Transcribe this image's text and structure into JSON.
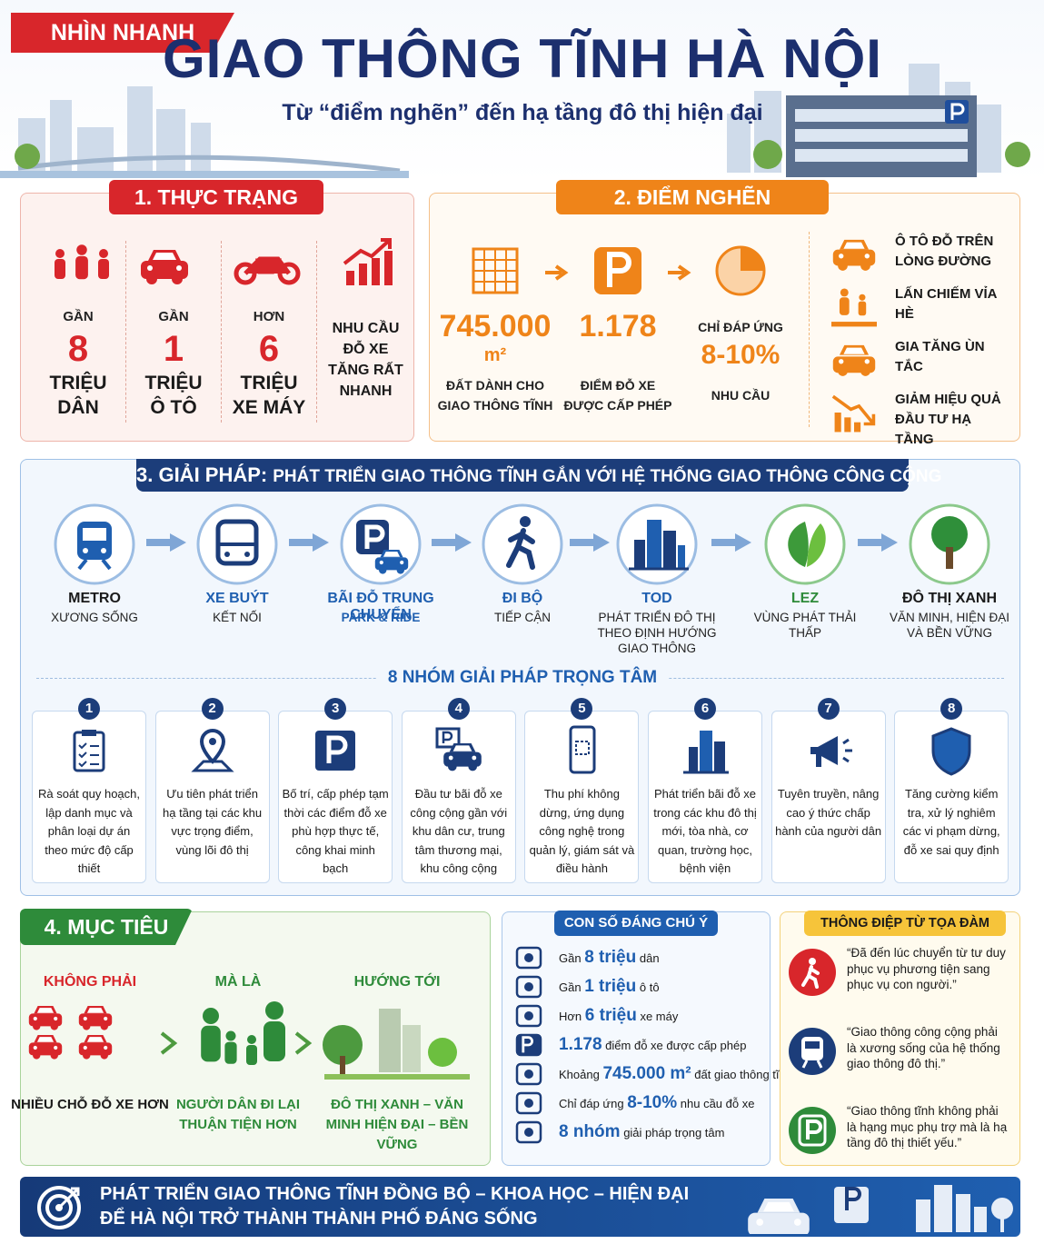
{
  "header": {
    "badge": "NHÌN NHANH",
    "title": "GIAO THÔNG TĨNH HÀ NỘI",
    "subtitle": "Từ “điểm nghẽn” đến hạ tầng đô thị hiện đại"
  },
  "status": {
    "title": "1. THỰC TRẠNG",
    "items": [
      {
        "prefix": "GẦN",
        "number": "8",
        "unit_lines": [
          "TRIỆU",
          "DÂN"
        ]
      },
      {
        "prefix": "GẦN",
        "number": "1",
        "unit_lines": [
          "TRIỆU",
          "Ô TÔ"
        ]
      },
      {
        "prefix": "HƠN",
        "number": "6",
        "unit_lines": [
          "TRIỆU",
          "XE MÁY"
        ]
      }
    ],
    "note": "NHU CẦU ĐỖ XE TĂNG RẤT NHANH"
  },
  "bottlenecks": {
    "title": "2. ĐIỂM NGHẼN",
    "stats": [
      {
        "value": "745.000",
        "unit": "m²",
        "label": "ĐẤT DÀNH CHO GIAO THÔNG TĨNH"
      },
      {
        "value": "1.178",
        "label": "ĐIỂM ĐỖ XE ĐƯỢC CẤP PHÉP"
      },
      {
        "prefix": "CHỈ ĐÁP ỨNG",
        "value": "8-10%",
        "label": "NHU CẦU"
      }
    ],
    "issues": [
      "Ô TÔ ĐỖ TRÊN LÒNG ĐƯỜNG",
      "LẤN CHIẾM VỈA HÈ",
      "GIA TĂNG ÙN TẮC",
      "GIẢM HIỆU QUẢ ĐẦU TƯ HẠ TẦNG"
    ]
  },
  "solutions": {
    "title_lead": "3. GIẢI PHÁP:",
    "title": "PHÁT TRIỂN GIAO THÔNG TĨNH GẮN VỚI HỆ THỐNG GIAO THÔNG CÔNG CỘNG",
    "flow": [
      {
        "name": "METRO",
        "desc": "XƯƠNG SỐNG"
      },
      {
        "name": "XE BUÝT",
        "desc": "KẾT NỐI"
      },
      {
        "name": "BÃI ĐỖ TRUNG CHUYỂN",
        "desc": "PARK & RIDE"
      },
      {
        "name": "ĐI BỘ",
        "desc": "TIẾP CẬN"
      },
      {
        "name": "TOD",
        "desc": "PHÁT TRIỂN ĐÔ THỊ THEO ĐỊNH HƯỚNG GIAO THÔNG"
      },
      {
        "name": "LEZ",
        "desc": "VÙNG PHÁT THẢI THẤP"
      },
      {
        "name": "ĐÔ THỊ XANH",
        "desc": "VĂN MINH, HIỆN ĐẠI VÀ BỀN VỮNG"
      }
    ],
    "groups_title": "8 NHÓM GIẢI PHÁP TRỌNG TÂM",
    "groups": [
      {
        "number": "1",
        "text": "Rà soát quy hoạch, lập danh mục và phân loại dự án theo mức độ cấp thiết"
      },
      {
        "number": "2",
        "text": "Ưu tiên phát triển hạ tầng tại các khu vực trọng điểm, vùng lõi đô thị"
      },
      {
        "number": "3",
        "text": "Bố trí, cấp phép tạm thời các điểm đỗ xe phù hợp thực tế, công khai minh bạch"
      },
      {
        "number": "4",
        "text": "Đầu tư bãi đỗ xe công cộng gần với khu dân cư, trung tâm thương mại, khu công cộng"
      },
      {
        "number": "5",
        "text": "Thu phí không dừng, ứng dụng công nghệ trong quản lý, giám sát và điều hành"
      },
      {
        "number": "6",
        "text": "Phát triển bãi đỗ xe trong các khu đô thị mới, tòa nhà, cơ quan, trường học, bệnh viện"
      },
      {
        "number": "7",
        "text": "Tuyên truyền, nâng cao ý thức chấp hành của người dân"
      },
      {
        "number": "8",
        "text": "Tăng cường kiểm tra, xử lý nghiêm các vi phạm dừng, đỗ xe sai quy định"
      }
    ]
  },
  "goals": {
    "title": "4. MỤC TIÊU",
    "columns": [
      {
        "heading": "KHÔNG PHẢI",
        "caption": "NHIỀU CHỖ ĐỖ XE HƠN"
      },
      {
        "heading": "MÀ LÀ",
        "caption": "NGƯỜI DÂN ĐI LẠI THUẬN TIỆN HƠN"
      },
      {
        "heading": "HƯỚNG TỚI",
        "caption": "ĐÔ THỊ XANH – VĂN MINH HIỆN ĐẠI – BỀN VỮNG"
      }
    ]
  },
  "facts": {
    "title": "CON SỐ ĐÁNG CHÚ Ý",
    "items": [
      {
        "before": "Gần",
        "number": "8 triệu",
        "after": "dân"
      },
      {
        "before": "Gần",
        "number": "1 triệu",
        "after": "ô tô"
      },
      {
        "before": "Hơn",
        "number": "6 triệu",
        "after": "xe máy"
      },
      {
        "number": "1.178",
        "after": "điểm đỗ xe được cấp phép"
      },
      {
        "before": "Khoảng",
        "number": "745.000 m²",
        "after": "đất giao thông tĩnh"
      },
      {
        "before": "Chỉ đáp ứng",
        "number": "8-10%",
        "after": "nhu cầu đỗ xe"
      },
      {
        "number": "8 nhóm",
        "after": "giải pháp trọng tâm"
      }
    ]
  },
  "messages": {
    "title": "THÔNG ĐIỆP TỪ TỌA ĐÀM",
    "quotes": [
      "“Đã đến lúc chuyển từ tư duy phục vụ phương tiện sang phục vụ con người.”",
      "“Giao thông công cộng phải là xương sống của hệ thống giao thông đô thị.”",
      "“Giao thông tĩnh không phải là hạng mục phụ trợ mà là hạ tầng đô thị thiết yếu.”"
    ]
  },
  "footer": {
    "lines": [
      "PHÁT TRIỂN GIAO THÔNG TĨNH ĐỒNG BỘ – KHOA HỌC – HIỆN ĐẠI",
      "ĐỂ HÀ NỘI TRỞ THÀNH THÀNH PHỐ ĐÁNG SỐNG"
    ]
  }
}
